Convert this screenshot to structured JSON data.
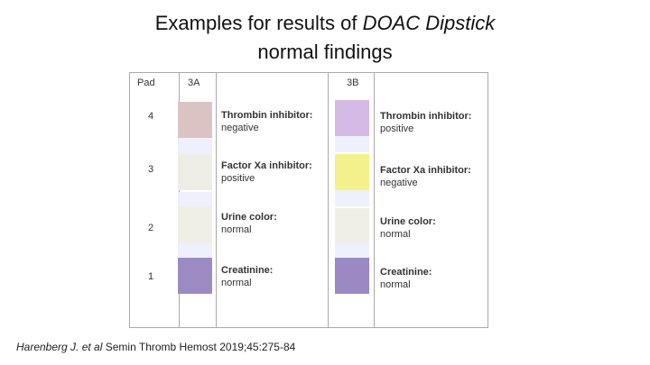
{
  "title": {
    "line1_plain": "Examples for results of",
    "line1_italic": "DOAC Dipstick",
    "line2": "normal findings"
  },
  "table": {
    "headers": [
      "Pad",
      "3A",
      "3B"
    ],
    "rows": [
      {
        "pad": "4",
        "a_label": "Thrombin inhibitor:",
        "a_result": "negative",
        "b_label": "Thrombin inhibitor:",
        "b_result": "positive"
      },
      {
        "pad": "3",
        "a_label": "Factor Xa inhibitor:",
        "a_result": "positive",
        "b_label": "Factor Xa inhibitor:",
        "b_result": "negative"
      },
      {
        "pad": "2",
        "a_label": "Urine color:",
        "a_result": "normal",
        "b_label": "Urine color:",
        "b_result": "normal"
      },
      {
        "pad": "1",
        "a_label": "Creatinine:",
        "a_result": "normal",
        "b_label": "Creatinine:",
        "b_result": "normal"
      }
    ]
  },
  "citation": {
    "authors": "Harenberg J. et al",
    "source": "Semin Thromb Hemost  2019;45:275-84"
  }
}
